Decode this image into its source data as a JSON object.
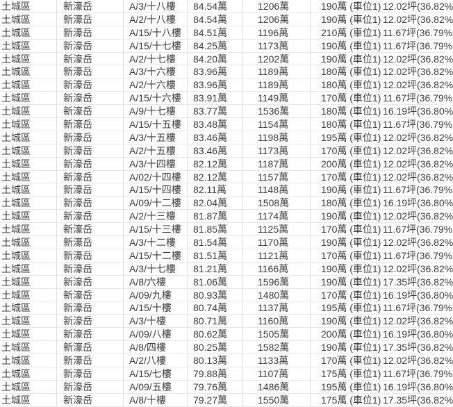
{
  "colors": {
    "background": "#ffffff",
    "text": "#3c3c3c",
    "grid_line_vertical": "#e0e0e0",
    "grid_line_horizontal": "#e7e7e7"
  },
  "table": {
    "fields": [
      "district",
      "building",
      "unit",
      "unit_price",
      "total_price",
      "parking",
      "area"
    ],
    "rows": [
      {
        "district": "土城區",
        "building": "新濠岳",
        "unit": "A/3/十八樓",
        "unit_price": "84.54萬",
        "total_price": "1206萬",
        "parking": "190萬 (車位1)",
        "area": "12.02坪(36.82%"
      },
      {
        "district": "土城區",
        "building": "新濠岳",
        "unit": "A/2/十八樓",
        "unit_price": "84.54萬",
        "total_price": "1206萬",
        "parking": "190萬 (車位1)",
        "area": "12.02坪(36.82%"
      },
      {
        "district": "土城區",
        "building": "新濠岳",
        "unit": "A/15/十八樓",
        "unit_price": "84.51萬",
        "total_price": "1196萬",
        "parking": "210萬 (車位1)",
        "area": "11.67坪(36.79%"
      },
      {
        "district": "土城區",
        "building": "新濠岳",
        "unit": "A/15/十七樓",
        "unit_price": "84.25萬",
        "total_price": "1173萬",
        "parking": "190萬 (車位1)",
        "area": "11.67坪(36.79%"
      },
      {
        "district": "土城區",
        "building": "新濠岳",
        "unit": "A/2/十七樓",
        "unit_price": "84.20萬",
        "total_price": "1202萬",
        "parking": "190萬 (車位1)",
        "area": "12.02坪(36.82%"
      },
      {
        "district": "土城區",
        "building": "新濠岳",
        "unit": "A/3/十六樓",
        "unit_price": "83.96萬",
        "total_price": "1189萬",
        "parking": "180萬 (車位1)",
        "area": "12.02坪(36.82%"
      },
      {
        "district": "土城區",
        "building": "新濠岳",
        "unit": "A/2/十六樓",
        "unit_price": "83.96萬",
        "total_price": "1189萬",
        "parking": "180萬 (車位1)",
        "area": "12.02坪(36.82%"
      },
      {
        "district": "土城區",
        "building": "新濠岳",
        "unit": "A/15/十六樓",
        "unit_price": "83.91萬",
        "total_price": "1149萬",
        "parking": "170萬 (車位1)",
        "area": "11.67坪(36.79%"
      },
      {
        "district": "土城區",
        "building": "新濠岳",
        "unit": "A/9/十七樓",
        "unit_price": "83.77萬",
        "total_price": "1536萬",
        "parking": "180萬 (車位1)",
        "area": "16.19坪(36.80%"
      },
      {
        "district": "土城區",
        "building": "新濠岳",
        "unit": "A/15/十五樓",
        "unit_price": "83.48萬",
        "total_price": "1154萬",
        "parking": "180萬 (車位1)",
        "area": "11.67坪(36.79%"
      },
      {
        "district": "土城區",
        "building": "新濠岳",
        "unit": "A/3/十五樓",
        "unit_price": "83.46萬",
        "total_price": "1198萬",
        "parking": "195萬 (車位1)",
        "area": "12.02坪(36.82%"
      },
      {
        "district": "土城區",
        "building": "新濠岳",
        "unit": "A/2/十五樓",
        "unit_price": "83.46萬",
        "total_price": "1173萬",
        "parking": "170萬 (車位1)",
        "area": "12.02坪(36.82%"
      },
      {
        "district": "土城區",
        "building": "新濠岳",
        "unit": "A/3/十四樓",
        "unit_price": "82.12萬",
        "total_price": "1187萬",
        "parking": "200萬 (車位1)",
        "area": "12.02坪(36.82%"
      },
      {
        "district": "土城區",
        "building": "新濠岳",
        "unit": "A/02/十四樓",
        "unit_price": "82.12萬",
        "total_price": "1157萬",
        "parking": "170萬 (車位1)",
        "area": "12.02坪(36.82%"
      },
      {
        "district": "土城區",
        "building": "新濠岳",
        "unit": "A/15/十四樓",
        "unit_price": "82.11萬",
        "total_price": "1148萬",
        "parking": "190萬 (車位1)",
        "area": "11.67坪(36.79%"
      },
      {
        "district": "土城區",
        "building": "新濠岳",
        "unit": "A/09/十二樓",
        "unit_price": "82.04萬",
        "total_price": "1508萬",
        "parking": "180萬 (車位1)",
        "area": "16.19坪(36.80%"
      },
      {
        "district": "土城區",
        "building": "新濠岳",
        "unit": "A/2/十三樓",
        "unit_price": "81.87萬",
        "total_price": "1174萬",
        "parking": "190萬 (車位1)",
        "area": "12.02坪(36.82%"
      },
      {
        "district": "土城區",
        "building": "新濠岳",
        "unit": "A/15/十三樓",
        "unit_price": "81.85萬",
        "total_price": "1125萬",
        "parking": "170萬 (車位1)",
        "area": "11.67坪(36.79%"
      },
      {
        "district": "土城區",
        "building": "新濠岳",
        "unit": "A/3/十二樓",
        "unit_price": "81.54萬",
        "total_price": "1170萬",
        "parking": "190萬 (車位1)",
        "area": "12.02坪(36.82%"
      },
      {
        "district": "土城區",
        "building": "新濠岳",
        "unit": "A/15/十二樓",
        "unit_price": "81.51萬",
        "total_price": "1121萬",
        "parking": "170萬 (車位1)",
        "area": "11.67坪(36.79%"
      },
      {
        "district": "土城區",
        "building": "新濠岳",
        "unit": "A/3/十七樓",
        "unit_price": "81.21萬",
        "total_price": "1166萬",
        "parking": "190萬 (車位1)",
        "area": "12.02坪(36.82%"
      },
      {
        "district": "土城區",
        "building": "新濠岳",
        "unit": "A/8/六樓",
        "unit_price": "81.06萬",
        "total_price": "1596萬",
        "parking": "190萬 (車位1)",
        "area": "17.35坪(36.82%"
      },
      {
        "district": "土城區",
        "building": "新濠岳",
        "unit": "A/09/九樓",
        "unit_price": "80.93萬",
        "total_price": "1480萬",
        "parking": "170萬 (車位1)",
        "area": "16.19坪(36.80%"
      },
      {
        "district": "土城區",
        "building": "新濠岳",
        "unit": "A/15/十樓",
        "unit_price": "80.74萬",
        "total_price": "1137萬",
        "parking": "195萬 (車位1)",
        "area": "11.67坪(36.79%"
      },
      {
        "district": "土城區",
        "building": "新濠岳",
        "unit": "A/3/十樓",
        "unit_price": "80.71萬",
        "total_price": "1160萬",
        "parking": "190萬 (車位1)",
        "area": "12.02坪(36.82%"
      },
      {
        "district": "土城區",
        "building": "新濠岳",
        "unit": "A/09/八樓",
        "unit_price": "80.62萬",
        "total_price": "1505萬",
        "parking": "200萬 (車位1)",
        "area": "16.19坪(36.80%"
      },
      {
        "district": "土城區",
        "building": "新濠岳",
        "unit": "A/8/四樓",
        "unit_price": "80.25萬",
        "total_price": "1582萬",
        "parking": "190萬 (車位1)",
        "area": "17.35坪(36.82%"
      },
      {
        "district": "土城區",
        "building": "新濠岳",
        "unit": "A/2/八樓",
        "unit_price": "80.13萬",
        "total_price": "1133萬",
        "parking": "170萬 (車位1)",
        "area": "12.02坪(36.82%"
      },
      {
        "district": "土城區",
        "building": "新濠岳",
        "unit": "A/15/七樓",
        "unit_price": "79.88萬",
        "total_price": "1107萬",
        "parking": "175萬 (車位1)",
        "area": "11.67坪(36.79%"
      },
      {
        "district": "土城區",
        "building": "新濠岳",
        "unit": "A/09/五樓",
        "unit_price": "79.76萬",
        "total_price": "1486萬",
        "parking": "195萬 (車位1)",
        "area": "16.19坪(36.80%"
      },
      {
        "district": "土城區",
        "building": "新濠岳",
        "unit": "A/8/十樓",
        "unit_price": "79.27萬",
        "total_price": "1550萬",
        "parking": "175萬 (車位1)",
        "area": "17.35坪(36.82%"
      }
    ]
  }
}
